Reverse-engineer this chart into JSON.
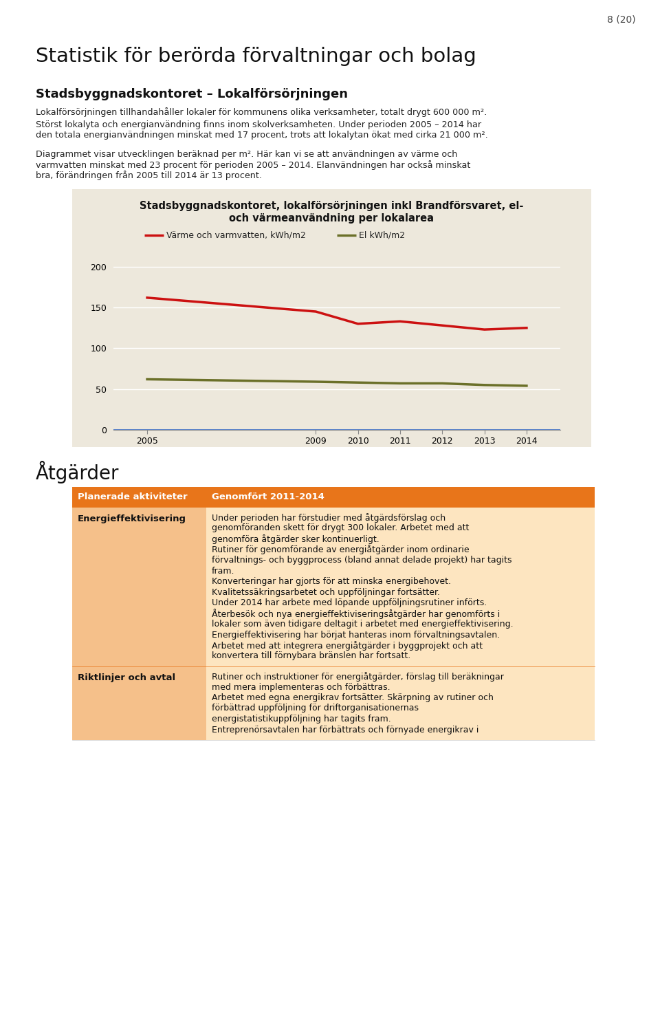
{
  "page_number": "8 (20)",
  "title_main": "Statistik för berörda förvaltningar och bolag",
  "subtitle_bold": "Stadsbyggnadskontoret – Lokalförsörjningen",
  "body_p1": "Lokalförsörjningen tillhandahåller lokaler för kommunens olika verksamheter, totalt drygt 600 000 m².",
  "body_p2a": "Störst lokalyta och energianvändning finns inom skolverksamheten. Under perioden 2005 – 2014 har",
  "body_p2b": "den totala energianvändningen minskat med 17 procent, trots att lokalytan ökat med cirka 21 000 m².",
  "body_p3a": "Diagrammet visar utvecklingen beräknad per m². Här kan vi se att användningen av värme och",
  "body_p3b": "varmvatten minskat med 23 procent för perioden 2005 – 2014. Elanvändningen har också minskat",
  "body_p3c": "bra, förändringen från 2005 till 2014 är 13 procent.",
  "chart_title_line1": "Stadsbyggnadskontoret, lokalförsörjningen inkl Brandförsvaret, el-",
  "chart_title_line2": "och värmeanvändning per lokalarea",
  "chart_bg_color": "#ede8dc",
  "years": [
    2005,
    2009,
    2010,
    2011,
    2012,
    2013,
    2014
  ],
  "heat_values": [
    162,
    145,
    130,
    133,
    128,
    123,
    125
  ],
  "el_values": [
    62,
    59,
    58,
    57,
    57,
    55,
    54
  ],
  "heat_color": "#cc1111",
  "el_color": "#6b7029",
  "heat_label": "Värme och varmvatten, kWh/m2",
  "el_label": "El kWh/m2",
  "y_ticks": [
    0,
    50,
    100,
    150,
    200
  ],
  "y_lim": [
    0,
    215
  ],
  "line_width": 2.5,
  "atgarder_title": "Åtgärder",
  "table_header_left": "Planerade aktiviteter",
  "table_header_right": "Genomfört 2011-2014",
  "table_header_bg": "#e8751a",
  "table_row_bg": "#f5c08a",
  "table_right_bg": "#fde5c0",
  "table_rows": [
    {
      "left": "Energieffektivisering",
      "right_lines": [
        "Under perioden har förstudier med åtgärdsförslag och",
        "genomföranden skett för drygt 300 lokaler. Arbetet med att",
        "genomföra åtgärder sker kontinuerligt.",
        "Rutiner för genomförande av energiåtgärder inom ordinarie",
        "förvaltnings- och byggprocess (bland annat delade projekt) har tagits",
        "fram.",
        "Konverteringar har gjorts för att minska energibehovet.",
        "Kvalitetssäkringsarbetet och uppföljningar fortsätter.",
        "Under 2014 har arbete med löpande uppföljningsrutiner införts.",
        "Återbesök och nya energieffektiviseringsåtgärder har genomförts i",
        "lokaler som även tidigare deltagit i arbetet med energieffektivisering.",
        "Energieffektivisering har börjat hanteras inom förvaltningsavtalen.",
        "Arbetet med att integrera energiåtgärder i byggprojekt och att",
        "konvertera till förnybara bränslen har fortsatt."
      ]
    },
    {
      "left": "Riktlinjer och avtal",
      "right_lines": [
        "Rutiner och instruktioner för energiåtgärder, förslag till beräkningar",
        "med mera implementeras och förbättras.",
        "Arbetet med egna energikrav fortsätter. Skärpning av rutiner och",
        "förbättrad uppföljning för driftorganisationernas",
        "energistatistikuppföljning har tagits fram.",
        "Entreprenörsavtalen har förbättrats och förnyade energikrav i"
      ]
    }
  ]
}
